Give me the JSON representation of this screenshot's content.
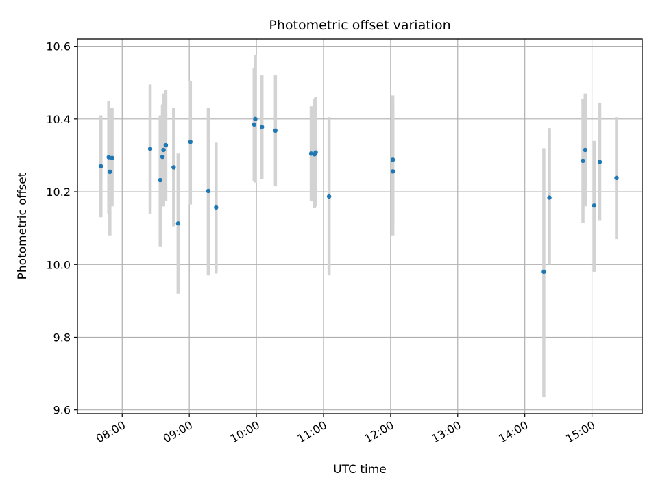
{
  "chart_data": {
    "type": "scatter",
    "title": "Photometric offset variation",
    "xlabel": "UTC time",
    "ylabel": "Photometric offset",
    "xlim": [
      "07:20",
      "15:45"
    ],
    "ylim": [
      9.59,
      10.62
    ],
    "x_ticks": [
      "08:00",
      "09:00",
      "10:00",
      "11:00",
      "12:00",
      "13:00",
      "14:00",
      "15:00"
    ],
    "y_ticks": [
      "9.6",
      "9.8",
      "10.0",
      "10.2",
      "10.4",
      "10.6"
    ],
    "grid": true,
    "colors": {
      "point": "#1f77b4",
      "errorbar": "#d3d3d3",
      "grid": "#b0b0b0"
    },
    "series": [
      {
        "points": [
          {
            "x": "07:41",
            "y": 10.27,
            "lo": 10.13,
            "hi": 10.41
          },
          {
            "x": "07:48",
            "y": 10.295,
            "lo": 10.14,
            "hi": 10.45
          },
          {
            "x": "07:49",
            "y": 10.255,
            "lo": 10.08,
            "hi": 10.43
          },
          {
            "x": "07:51",
            "y": 10.293,
            "lo": 10.16,
            "hi": 10.43
          },
          {
            "x": "08:25",
            "y": 10.318,
            "lo": 10.14,
            "hi": 10.495
          },
          {
            "x": "08:34",
            "y": 10.232,
            "lo": 10.05,
            "hi": 10.41
          },
          {
            "x": "08:36",
            "y": 10.296,
            "lo": 10.16,
            "hi": 10.44
          },
          {
            "x": "08:37",
            "y": 10.315,
            "lo": 10.16,
            "hi": 10.47
          },
          {
            "x": "08:39",
            "y": 10.328,
            "lo": 10.175,
            "hi": 10.48
          },
          {
            "x": "08:46",
            "y": 10.267,
            "lo": 10.105,
            "hi": 10.43
          },
          {
            "x": "08:50",
            "y": 10.113,
            "lo": 9.92,
            "hi": 10.305
          },
          {
            "x": "09:01",
            "y": 10.337,
            "lo": 10.165,
            "hi": 10.505
          },
          {
            "x": "09:17",
            "y": 10.202,
            "lo": 9.97,
            "hi": 10.43
          },
          {
            "x": "09:24",
            "y": 10.157,
            "lo": 9.975,
            "hi": 10.335
          },
          {
            "x": "09:58",
            "y": 10.385,
            "lo": 10.23,
            "hi": 10.54
          },
          {
            "x": "09:59",
            "y": 10.4,
            "lo": 10.225,
            "hi": 10.575
          },
          {
            "x": "10:05",
            "y": 10.378,
            "lo": 10.235,
            "hi": 10.52
          },
          {
            "x": "10:17",
            "y": 10.368,
            "lo": 10.215,
            "hi": 10.52
          },
          {
            "x": "10:49",
            "y": 10.305,
            "lo": 10.175,
            "hi": 10.435
          },
          {
            "x": "10:52",
            "y": 10.303,
            "lo": 10.155,
            "hi": 10.455
          },
          {
            "x": "10:53",
            "y": 10.308,
            "lo": 10.16,
            "hi": 10.46
          },
          {
            "x": "11:05",
            "y": 10.187,
            "lo": 9.97,
            "hi": 10.405
          },
          {
            "x": "12:02",
            "y": 10.288,
            "lo": 10.11,
            "hi": 10.465
          },
          {
            "x": "12:02",
            "y": 10.256,
            "lo": 10.08,
            "hi": 10.43
          },
          {
            "x": "14:17",
            "y": 9.98,
            "lo": 9.635,
            "hi": 10.32
          },
          {
            "x": "14:22",
            "y": 10.184,
            "lo": 10.0,
            "hi": 10.375
          },
          {
            "x": "14:52",
            "y": 10.285,
            "lo": 10.115,
            "hi": 10.455
          },
          {
            "x": "14:54",
            "y": 10.315,
            "lo": 10.16,
            "hi": 10.47
          },
          {
            "x": "15:02",
            "y": 10.162,
            "lo": 9.98,
            "hi": 10.34
          },
          {
            "x": "15:07",
            "y": 10.282,
            "lo": 10.12,
            "hi": 10.445
          },
          {
            "x": "15:22",
            "y": 10.238,
            "lo": 10.07,
            "hi": 10.405
          }
        ]
      }
    ]
  }
}
